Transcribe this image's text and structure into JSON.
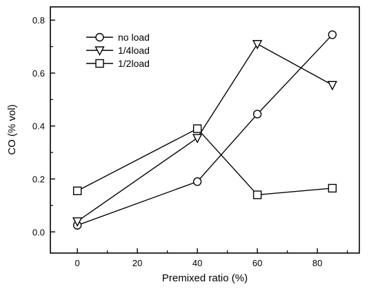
{
  "chart_data": {
    "type": "line",
    "title": "",
    "xlabel": "Premixed ratio (%)",
    "ylabel": "CO (% vol)",
    "xlim": [
      -9,
      94
    ],
    "ylim": [
      -0.08,
      0.85
    ],
    "xticks": [
      0,
      20,
      40,
      60,
      80
    ],
    "xtick_labels": [
      "0",
      "20",
      "40",
      "60",
      "80"
    ],
    "yticks": [
      0.0,
      0.2,
      0.4,
      0.6,
      0.8
    ],
    "ytick_labels": [
      "0.0",
      "0.2",
      "0.4",
      "0.6",
      "0.8"
    ],
    "grid": false,
    "legend_position": "top-left",
    "x": [
      0,
      40,
      60,
      85
    ],
    "series": [
      {
        "name": "no load",
        "marker": "circle",
        "values": [
          0.025,
          0.19,
          0.445,
          0.745
        ]
      },
      {
        "name": "1/4load",
        "marker": "triangle-down",
        "values": [
          0.04,
          0.355,
          0.71,
          0.555
        ]
      },
      {
        "name": "1/2load",
        "marker": "square",
        "values": [
          0.155,
          0.39,
          0.14,
          0.165
        ]
      }
    ],
    "colors": {
      "line": "#000000",
      "marker_fill": "#ffffff",
      "axis": "#000000"
    }
  }
}
